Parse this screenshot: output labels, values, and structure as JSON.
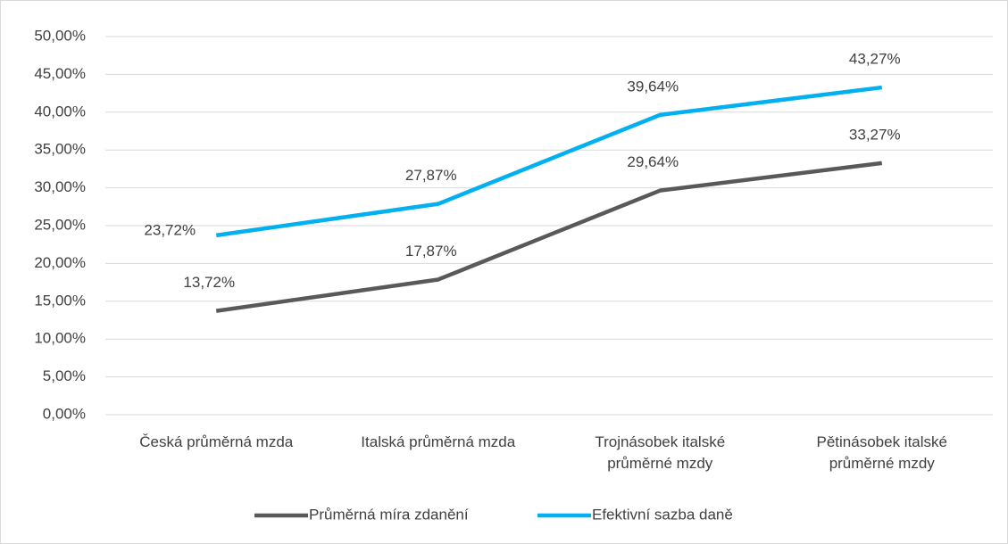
{
  "chart_data": {
    "type": "line",
    "categories": [
      "Česká průměrná mzda",
      "Italská průměrná mzda",
      "Trojnásobek italské průměrné mzdy",
      "Pětinásobek italské průměrné mzdy"
    ],
    "series": [
      {
        "name": "Průměrná míra zdanění",
        "color": "#595959",
        "values": [
          13.72,
          17.87,
          29.64,
          33.27
        ],
        "value_labels": [
          "13,72%",
          "17,87%",
          "29,64%",
          "33,27%"
        ]
      },
      {
        "name": "Efektivní sazba daně",
        "color": "#00b0f0",
        "values": [
          23.72,
          27.87,
          39.64,
          43.27
        ],
        "value_labels": [
          "23,72%",
          "27,87%",
          "39,64%",
          "43,27%"
        ]
      }
    ],
    "ylim": [
      0,
      50
    ],
    "yticks": [
      {
        "value": 0,
        "label": "0,00%"
      },
      {
        "value": 5,
        "label": "5,00%"
      },
      {
        "value": 10,
        "label": "10,00%"
      },
      {
        "value": 15,
        "label": "15,00%"
      },
      {
        "value": 20,
        "label": "20,00%"
      },
      {
        "value": 25,
        "label": "25,00%"
      },
      {
        "value": 30,
        "label": "30,00%"
      },
      {
        "value": 35,
        "label": "35,00%"
      },
      {
        "value": 40,
        "label": "40,00%"
      },
      {
        "value": 45,
        "label": "45,00%"
      },
      {
        "value": 50,
        "label": "50,00%"
      }
    ],
    "grid": true,
    "legend": "bottom"
  }
}
